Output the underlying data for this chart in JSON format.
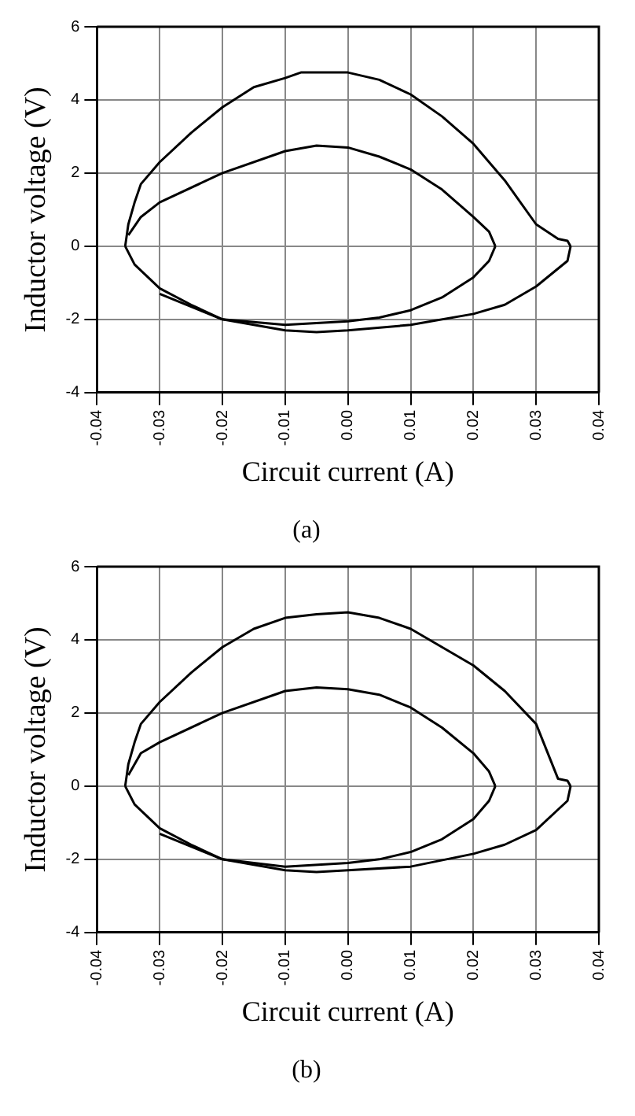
{
  "chart_data": [
    {
      "type": "line",
      "title": "(a)",
      "xlabel": "Circuit current (A)",
      "ylabel": "Inductor voltage (V)",
      "xlim": [
        -0.04,
        0.04
      ],
      "xticks": [
        -0.04,
        -0.03,
        -0.02,
        -0.01,
        {
          "value": 0,
          "label": "0.00"
        },
        0.01,
        0.02,
        0.03,
        0.04
      ],
      "ylim": [
        -4,
        6
      ],
      "yticks": [
        -4,
        -2,
        0,
        2,
        4,
        6
      ],
      "grid": true,
      "legend": false,
      "marker": "none",
      "line_style": "solid",
      "series": [
        {
          "color": "#000000",
          "x": [
            -0.0355,
            -0.035,
            -0.034,
            -0.033,
            -0.03,
            -0.025,
            -0.02,
            -0.015,
            -0.01,
            -0.0075,
            0,
            0.005,
            0.01,
            0.015,
            0.02,
            0.025,
            0.03,
            0.0335,
            0.035,
            0.0355
          ],
          "values": [
            0,
            0.6,
            1.2,
            1.7,
            2.3,
            3.1,
            3.8,
            4.35,
            4.6,
            4.75,
            4.75,
            4.55,
            4.15,
            3.55,
            2.8,
            1.8,
            0.6,
            0.2,
            0.15,
            0
          ]
        },
        {
          "color": "#000000",
          "x": [
            -0.0355,
            -0.034,
            -0.03,
            -0.025,
            -0.02,
            -0.01,
            -0.005,
            0,
            0.01,
            0.02,
            0.025,
            0.03,
            0.035,
            0.0355
          ],
          "values": [
            0,
            -0.5,
            -1.15,
            -1.6,
            -2.0,
            -2.3,
            -2.35,
            -2.3,
            -2.15,
            -1.85,
            -1.6,
            -1.1,
            -0.4,
            0
          ]
        },
        {
          "color": "#000000",
          "x": [
            -0.035,
            -0.033,
            -0.03,
            -0.02,
            -0.01,
            -0.005,
            0,
            0.005,
            0.01,
            0.015,
            0.02,
            0.0225,
            0.0235
          ],
          "values": [
            0.3,
            0.8,
            1.2,
            2.0,
            2.6,
            2.75,
            2.7,
            2.45,
            2.1,
            1.55,
            0.8,
            0.4,
            0
          ]
        },
        {
          "color": "#000000",
          "x": [
            -0.03,
            -0.02,
            -0.01,
            0,
            0.005,
            0.01,
            0.015,
            0.02,
            0.0225,
            0.0235
          ],
          "values": [
            -1.3,
            -2.0,
            -2.15,
            -2.05,
            -1.95,
            -1.75,
            -1.4,
            -0.85,
            -0.4,
            0
          ]
        }
      ]
    },
    {
      "type": "line",
      "title": "(b)",
      "xlabel": "Circuit current (A)",
      "ylabel": "Inductor voltage (V)",
      "xlim": [
        -0.04,
        0.04
      ],
      "xticks": [
        -0.04,
        -0.03,
        -0.02,
        -0.01,
        {
          "value": 0,
          "label": "0.00"
        },
        0.01,
        0.02,
        0.03,
        0.04
      ],
      "ylim": [
        -4,
        6
      ],
      "yticks": [
        -4,
        -2,
        0,
        2,
        4,
        6
      ],
      "grid": true,
      "legend": false,
      "marker": "none",
      "line_style": "solid",
      "series": [
        {
          "color": "#000000",
          "x": [
            -0.0355,
            -0.035,
            -0.034,
            -0.033,
            -0.03,
            -0.025,
            -0.02,
            -0.015,
            -0.01,
            -0.005,
            0,
            0.005,
            0.01,
            0.015,
            0.02,
            0.025,
            0.03,
            0.0335,
            0.035,
            0.0355
          ],
          "values": [
            0,
            0.6,
            1.2,
            1.7,
            2.3,
            3.1,
            3.8,
            4.3,
            4.6,
            4.7,
            4.75,
            4.6,
            4.3,
            3.8,
            3.3,
            2.6,
            1.7,
            0.2,
            0.15,
            0
          ]
        },
        {
          "color": "#000000",
          "x": [
            -0.0355,
            -0.034,
            -0.03,
            -0.025,
            -0.02,
            -0.01,
            -0.005,
            0,
            0.01,
            0.02,
            0.025,
            0.03,
            0.035,
            0.0355
          ],
          "values": [
            0,
            -0.5,
            -1.15,
            -1.6,
            -2.0,
            -2.3,
            -2.35,
            -2.3,
            -2.2,
            -1.85,
            -1.6,
            -1.2,
            -0.4,
            0
          ]
        },
        {
          "color": "#000000",
          "x": [
            -0.035,
            -0.033,
            -0.03,
            -0.02,
            -0.01,
            -0.005,
            0,
            0.005,
            0.01,
            0.015,
            0.02,
            0.0225,
            0.0235
          ],
          "values": [
            0.3,
            0.9,
            1.2,
            2.0,
            2.6,
            2.7,
            2.65,
            2.5,
            2.15,
            1.6,
            0.9,
            0.4,
            0
          ]
        },
        {
          "color": "#000000",
          "x": [
            -0.03,
            -0.02,
            -0.01,
            0,
            0.005,
            0.01,
            0.015,
            0.02,
            0.0225,
            0.0235
          ],
          "values": [
            -1.3,
            -2.0,
            -2.2,
            -2.1,
            -2.0,
            -1.8,
            -1.45,
            -0.9,
            -0.4,
            0
          ]
        }
      ]
    }
  ]
}
